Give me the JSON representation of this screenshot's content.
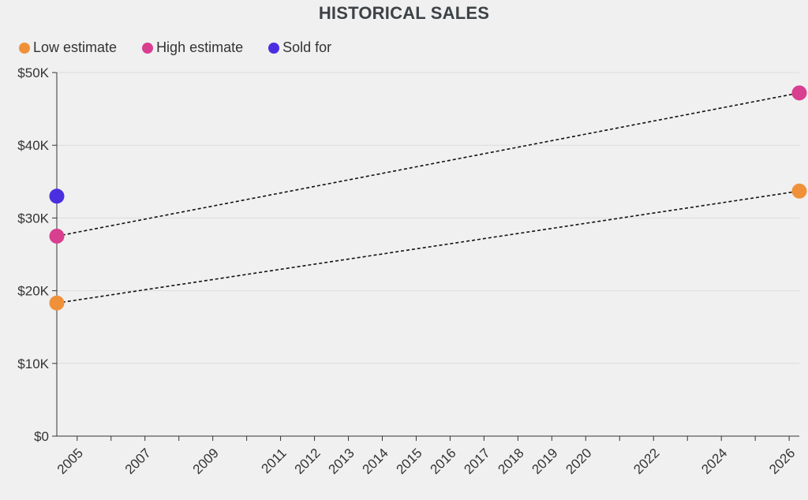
{
  "colors": {
    "low": "#f0913a",
    "high": "#d83f8f",
    "sold": "#4a2fe0",
    "grid": "#dcdcdc",
    "axis": "#333333"
  },
  "chart_data": {
    "type": "scatter",
    "title": "HISTORICAL SALES",
    "xlabel": "",
    "ylabel": "",
    "ylim": [
      0,
      50000
    ],
    "xlim": [
      2004.4,
      2026.3
    ],
    "y_ticks": [
      0,
      10000,
      20000,
      30000,
      40000,
      50000
    ],
    "y_tick_labels": [
      "$0",
      "$10K",
      "$20K",
      "$30K",
      "$40K",
      "$50K"
    ],
    "x_tick_labels": [
      "2005",
      "2007",
      "2009",
      "2011",
      "2012",
      "2013",
      "2014",
      "2015",
      "2016",
      "2017",
      "2018",
      "2019",
      "2020",
      "2022",
      "2024",
      "2026"
    ],
    "x_tick_values": [
      2005,
      2007,
      2009,
      2011,
      2012,
      2013,
      2014,
      2015,
      2016,
      2017,
      2018,
      2019,
      2020,
      2022,
      2024,
      2026
    ],
    "x_tick_marks": [
      2005,
      2006,
      2007,
      2008,
      2009,
      2010,
      2011,
      2012,
      2013,
      2014,
      2015,
      2016,
      2017,
      2018,
      2019,
      2020,
      2021,
      2022,
      2023,
      2024,
      2025,
      2026
    ],
    "legend": [
      "Low estimate",
      "High estimate",
      "Sold for"
    ],
    "grid": true,
    "series": [
      {
        "name": "Low estimate",
        "color_key": "low",
        "points": [
          {
            "x": 2004.4,
            "y": 18300
          },
          {
            "x": 2026.3,
            "y": 33700
          }
        ],
        "trend": true
      },
      {
        "name": "High estimate",
        "color_key": "high",
        "points": [
          {
            "x": 2004.4,
            "y": 27500
          },
          {
            "x": 2026.3,
            "y": 47200
          }
        ],
        "trend": true
      },
      {
        "name": "Sold for",
        "color_key": "sold",
        "points": [
          {
            "x": 2004.4,
            "y": 33000
          }
        ],
        "trend": false
      }
    ]
  }
}
